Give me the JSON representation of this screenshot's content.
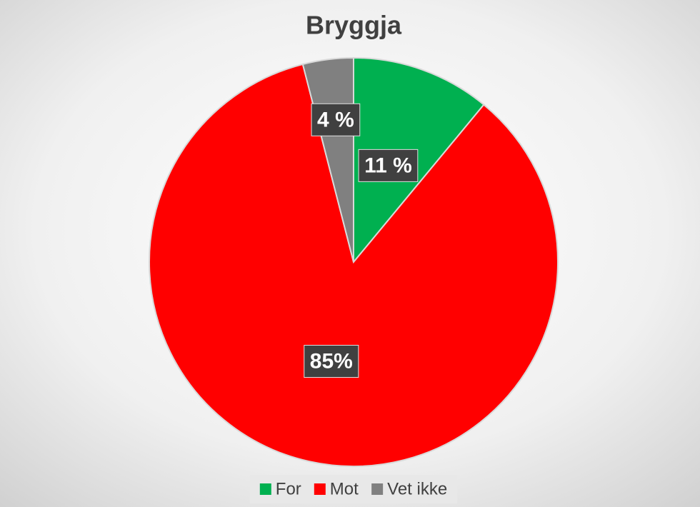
{
  "chart_data": {
    "type": "pie",
    "title": "Bryggja",
    "categories": [
      "For",
      "Mot",
      "Vet ikke"
    ],
    "values": [
      11,
      85,
      4
    ],
    "value_labels": [
      "11 %",
      "85%",
      "4 %"
    ],
    "colors": [
      "#00b050",
      "#ff0000",
      "#808080"
    ],
    "legend": "bottom"
  }
}
